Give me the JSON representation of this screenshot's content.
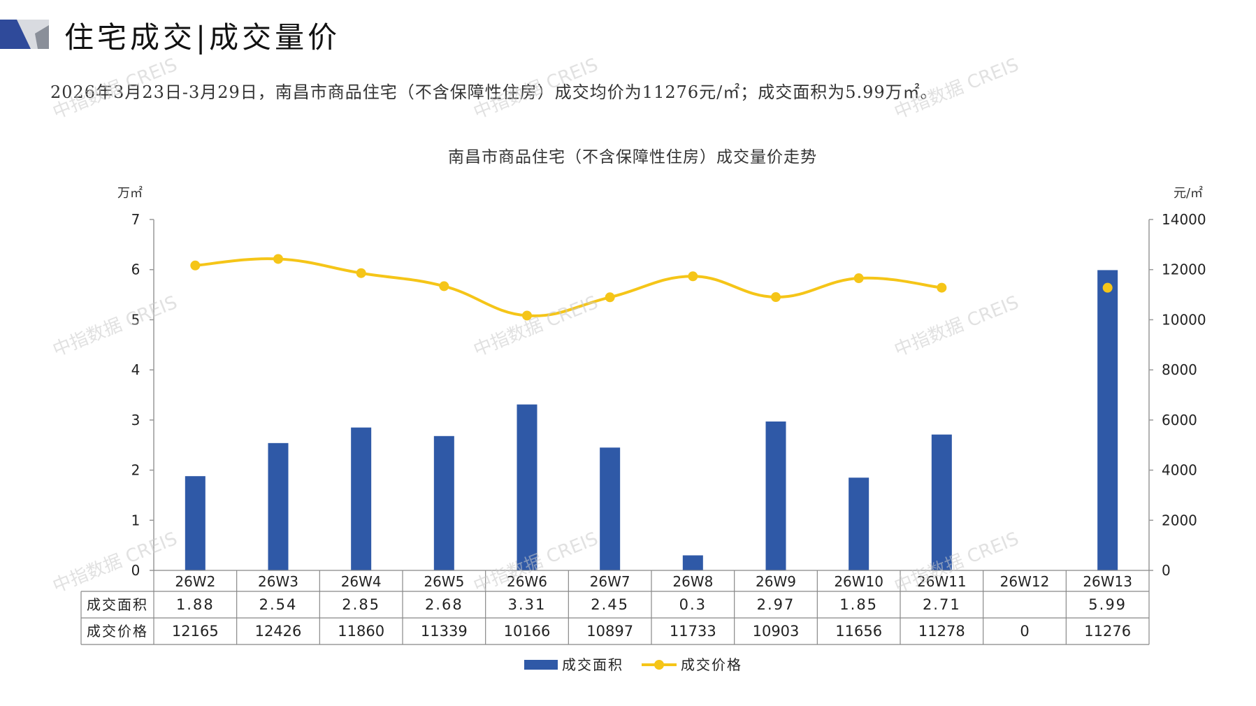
{
  "header": {
    "title": "住宅成交|成交量价",
    "summary": "2026年3月23日-3月29日，南昌市商品住宅（不含保障性住房）成交均价为11276元/㎡；成交面积为5.99万㎡。"
  },
  "watermark": "中指数据 CREIS",
  "colors": {
    "bar": "#2f59a7",
    "line": "#f5c518",
    "accent_dark": "#2f4a9a",
    "accent_grey": "#8a8f99"
  },
  "chart_data": {
    "type": "bar",
    "title": "南昌市商品住宅（不含保障性住房）成交量价走势",
    "y_left_unit": "万㎡",
    "y_right_unit": "元/㎡",
    "ylim_left": [
      0,
      7
    ],
    "ylim_right": [
      0,
      14000
    ],
    "y_left_ticks": [
      "0",
      "1",
      "2",
      "3",
      "4",
      "5",
      "6",
      "7"
    ],
    "y_right_ticks": [
      "0",
      "2000",
      "4000",
      "6000",
      "8000",
      "10000",
      "12000",
      "14000"
    ],
    "categories": [
      "26W2",
      "26W3",
      "26W4",
      "26W5",
      "26W6",
      "26W7",
      "26W8",
      "26W9",
      "26W10",
      "26W11",
      "26W12",
      "26W13"
    ],
    "series": [
      {
        "name": "成交面积",
        "type": "bar",
        "axis": "left",
        "values": [
          1.88,
          2.54,
          2.85,
          2.68,
          3.31,
          2.45,
          0.3,
          2.97,
          1.85,
          2.71,
          null,
          5.99
        ],
        "labels": [
          "1.88",
          "2.54",
          "2.85",
          "2.68",
          "3.31",
          "2.45",
          "0.3",
          "2.97",
          "1.85",
          "2.71",
          "",
          "5.99"
        ]
      },
      {
        "name": "成交价格",
        "type": "line",
        "axis": "right",
        "values": [
          12165,
          12426,
          11860,
          11339,
          10166,
          10897,
          11733,
          10903,
          11656,
          11278,
          0,
          11276
        ],
        "labels": [
          "12165",
          "12426",
          "11860",
          "11339",
          "10166",
          "10897",
          "11733",
          "10903",
          "11656",
          "11278",
          "0",
          "11276"
        ]
      }
    ],
    "legend_position": "bottom",
    "grid": false
  }
}
